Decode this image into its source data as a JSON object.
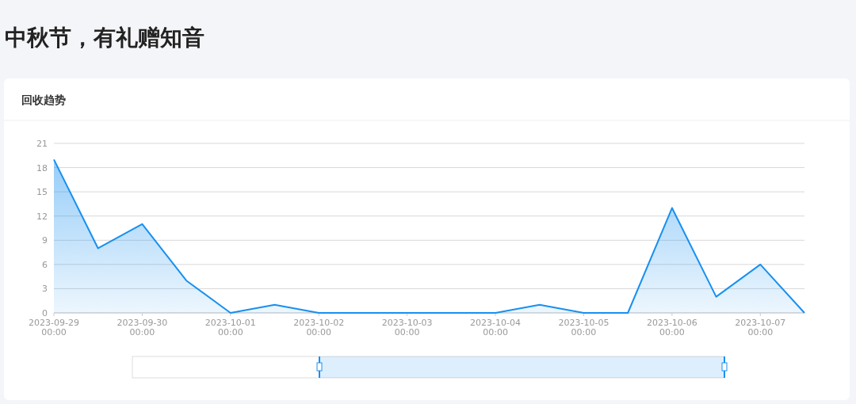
{
  "chart_data": {
    "type": "area",
    "title": "中秋节，有礼赠知音",
    "subtitle": "回收趋势",
    "x": [
      "2023-09-29T00:00",
      "2023-09-29T12:00",
      "2023-09-30T00:00",
      "2023-09-30T12:00",
      "2023-10-01T00:00",
      "2023-10-01T12:00",
      "2023-10-02T00:00",
      "2023-10-02T12:00",
      "2023-10-03T00:00",
      "2023-10-03T12:00",
      "2023-10-04T00:00",
      "2023-10-04T12:00",
      "2023-10-05T00:00",
      "2023-10-05T12:00",
      "2023-10-06T00:00",
      "2023-10-06T12:00",
      "2023-10-07T00:00",
      "2023-10-07T12:00"
    ],
    "series": [
      {
        "color": "#1890f0",
        "values": [
          19,
          8,
          11,
          4,
          0,
          1,
          0,
          0,
          0,
          0,
          0,
          1,
          0,
          0,
          13,
          2,
          6,
          0
        ]
      }
    ],
    "xlim": [
      "2023-09-29T00:00",
      "2023-10-07T12:00"
    ],
    "xticks": [
      {
        "value": "2023-09-29T00:00",
        "label": "2023-09-29 00:00"
      },
      {
        "value": "2023-09-30T00:00",
        "label": "2023-09-30 00:00"
      },
      {
        "value": "2023-10-01T00:00",
        "label": "2023-10-01 00:00"
      },
      {
        "value": "2023-10-02T00:00",
        "label": "2023-10-02 00:00"
      },
      {
        "value": "2023-10-03T00:00",
        "label": "2023-10-03 00:00"
      },
      {
        "value": "2023-10-04T00:00",
        "label": "2023-10-04 00:00"
      },
      {
        "value": "2023-10-05T00:00",
        "label": "2023-10-05 00:00"
      },
      {
        "value": "2023-10-06T00:00",
        "label": "2023-10-06 00:00"
      },
      {
        "value": "2023-10-07T00:00",
        "label": "2023-10-07 00:00"
      }
    ],
    "ylim": [
      0,
      21
    ],
    "yticks": [
      0,
      3,
      6,
      9,
      12,
      15,
      18,
      21
    ],
    "grid": "y",
    "marker": "none",
    "line_style": "solid"
  }
}
